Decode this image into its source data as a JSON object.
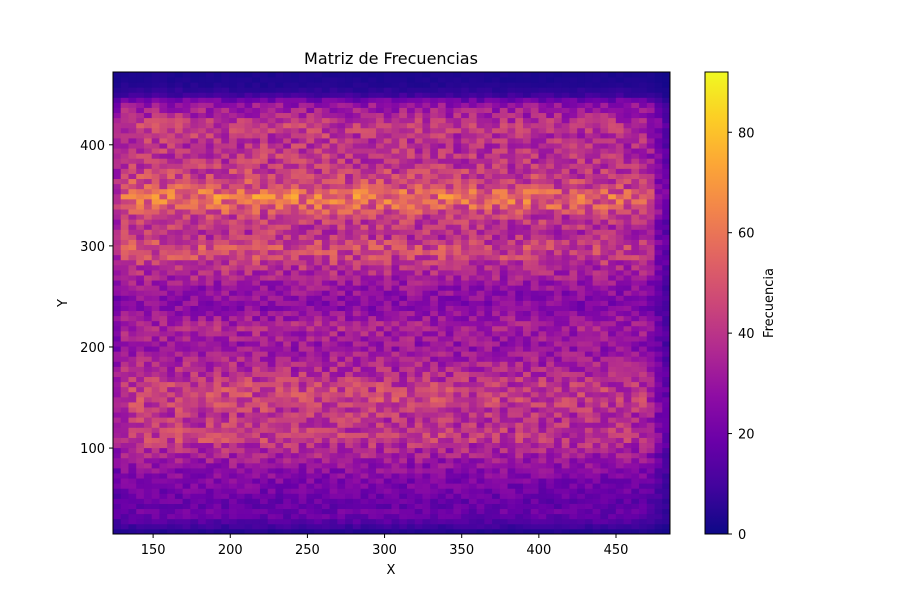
{
  "chart_data": {
    "type": "heatmap",
    "title": "Matriz de Frecuencias",
    "xlabel": "X",
    "ylabel": "Y",
    "xlim": [
      124,
      485
    ],
    "ylim": [
      15,
      472
    ],
    "x_ticks": [
      150,
      200,
      250,
      300,
      350,
      400,
      450
    ],
    "y_ticks": [
      100,
      200,
      300,
      400
    ],
    "colormap": "plasma",
    "grid": false,
    "colorbar": {
      "label": "Frecuencia",
      "min": 0,
      "max": 92,
      "ticks": [
        0,
        20,
        40,
        60,
        80
      ]
    },
    "x_bin_count": 72,
    "y_bin_count": 91,
    "row_profile": {
      "y": [
        15,
        25,
        35,
        45,
        60,
        80,
        100,
        110,
        120,
        130,
        150,
        160,
        180,
        190,
        200,
        220,
        240,
        260,
        280,
        290,
        300,
        310,
        330,
        340,
        350,
        360,
        380,
        400,
        420,
        440,
        450,
        460,
        472
      ],
      "mean_frequency": [
        2,
        12,
        20,
        18,
        22,
        28,
        38,
        44,
        42,
        40,
        46,
        44,
        36,
        34,
        30,
        36,
        26,
        30,
        40,
        46,
        48,
        40,
        44,
        56,
        60,
        48,
        42,
        40,
        42,
        30,
        8,
        4,
        3
      ]
    },
    "column_profile": {
      "x": [
        124,
        130,
        150,
        200,
        250,
        300,
        350,
        400,
        450,
        470,
        480,
        485
      ],
      "relative_intensity": [
        0.6,
        1.0,
        1.0,
        1.0,
        1.0,
        0.98,
        0.96,
        0.95,
        0.92,
        0.88,
        0.45,
        0.3
      ]
    }
  }
}
